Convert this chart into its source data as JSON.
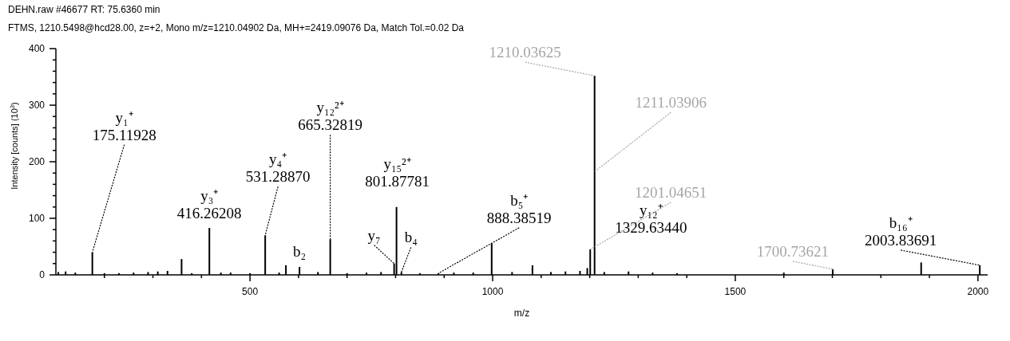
{
  "chart_data": {
    "type": "bar",
    "title": "DEHN.raw  #46677  RT: 75.6360 min",
    "subtitle": "FTMS, 1210.5498@hcd28.00, z=+2, Mono m/z=1210.04902 Da, MH+=2419.09076 Da, Match Tol.=0.02 Da",
    "xlabel": "m/z",
    "ylabel": "Intensity [counts] (10$^{3}$)",
    "x": [
      105,
      120,
      140,
      175.11928,
      200,
      230,
      260,
      290,
      310,
      330,
      359,
      380,
      416.26208,
      440,
      460,
      500,
      531.2887,
      560,
      574,
      602,
      640,
      665.32819,
      700,
      740,
      770,
      797,
      801.87781,
      812,
      850,
      888.38519,
      920,
      960,
      998,
      1040,
      1082,
      1120,
      1150,
      1180,
      1195,
      1201.04651,
      1210.03625,
      1230,
      1280,
      1329.6344,
      1380,
      1600,
      1700.73621,
      1883,
      2003.83691
    ],
    "values": [
      5,
      6,
      4,
      40,
      3,
      3,
      4,
      5,
      6,
      7,
      28,
      3,
      83,
      4,
      4,
      3,
      70,
      4,
      17,
      14,
      5,
      63,
      3,
      4,
      5,
      20,
      120,
      5,
      3,
      3,
      4,
      4,
      56,
      5,
      17,
      5,
      6,
      7,
      12,
      45,
      352,
      5,
      6,
      4,
      3,
      4,
      10,
      22,
      17
    ],
    "color": "#000000",
    "xlim": [
      100,
      2020
    ],
    "xticks": [
      {
        "value": 200,
        "label": null
      },
      {
        "value": 300,
        "label": null
      },
      {
        "value": 400,
        "label": null
      },
      500,
      {
        "value": 600,
        "label": null
      },
      {
        "value": 700,
        "label": null
      },
      {
        "value": 800,
        "label": null
      },
      {
        "value": 900,
        "label": null
      },
      1000,
      {
        "value": 1100,
        "label": null
      },
      {
        "value": 1200,
        "label": null
      },
      {
        "value": 1300,
        "label": null
      },
      {
        "value": 1400,
        "label": null
      },
      1500,
      {
        "value": 1600,
        "label": null
      },
      {
        "value": 1700,
        "label": null
      },
      {
        "value": 1800,
        "label": null
      },
      {
        "value": 1900,
        "label": null
      },
      2000
    ],
    "ylim": [
      0,
      400
    ],
    "yticks": [
      0,
      {
        "value": 20,
        "label": null
      },
      {
        "value": 40,
        "label": null
      },
      {
        "value": 60,
        "label": null
      },
      {
        "value": 80,
        "label": null
      },
      100,
      {
        "value": 120,
        "label": null
      },
      {
        "value": 140,
        "label": null
      },
      {
        "value": 160,
        "label": null
      },
      {
        "value": 180,
        "label": null
      },
      200,
      {
        "value": 220,
        "label": null
      },
      {
        "value": 240,
        "label": null
      },
      {
        "value": 260,
        "label": null
      },
      {
        "value": 280,
        "label": null
      },
      300,
      {
        "value": 320,
        "label": null
      },
      {
        "value": 340,
        "label": null
      },
      {
        "value": 360,
        "label": null
      },
      {
        "value": 380,
        "label": null
      },
      400
    ],
    "grid": false,
    "annotations": [
      {
        "text": "y₁⁺\n175.11928",
        "x": 175.11928,
        "y": 40
      },
      {
        "text": "y₃⁺\n416.26208",
        "x": 416.26208,
        "y": 83
      },
      {
        "text": "y₄⁺\n531.28870",
        "x": 531.2887,
        "y": 70
      },
      {
        "text": "y₁₂²⁺\n665.32819",
        "x": 665.32819,
        "y": 63
      },
      {
        "text": "y₁₅²⁺\n801.87781",
        "x": 801.87781,
        "y": 120
      },
      {
        "text": "b₂",
        "x": 602,
        "y": 14
      },
      {
        "text": "y₇",
        "x": 797,
        "y": 20
      },
      {
        "text": "b₄",
        "x": 812,
        "y": 5
      },
      {
        "text": "b₅⁺\n888.38519",
        "x": 888.38519,
        "y": 3
      },
      {
        "text": "1210.03625",
        "x": 1210.03625,
        "y": 352
      },
      {
        "text": "1211.03906",
        "x": 1211.03906,
        "y": 183
      },
      {
        "text": "1201.04651",
        "x": 1201.04651,
        "y": 45
      },
      {
        "text": "y₁₂⁺\n1329.63440",
        "x": 1329.6344,
        "y": 4
      },
      {
        "text": "1700.73621",
        "x": 1700.73621,
        "y": 10
      },
      {
        "text": "b₁₆⁺\n2003.83691",
        "x": 2003.83691,
        "y": 17
      }
    ]
  }
}
